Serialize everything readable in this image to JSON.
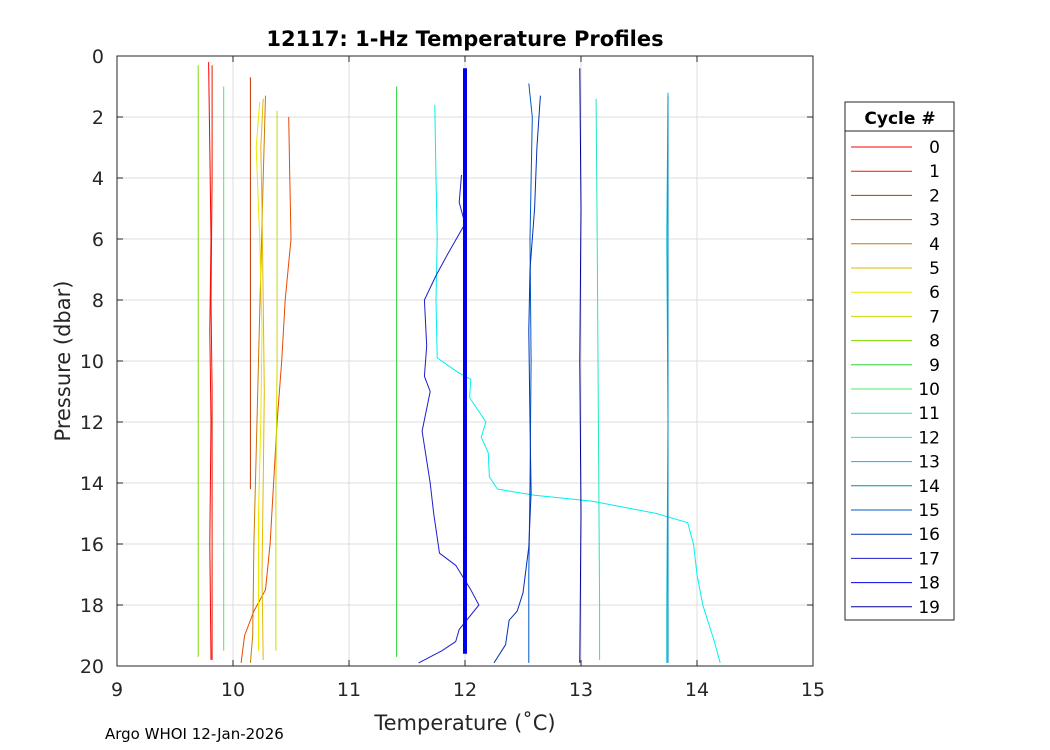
{
  "chart_data": {
    "type": "line",
    "title": "12117: 1-Hz Temperature Profiles",
    "xlabel": "Temperature (˚C)",
    "ylabel": "Pressure (dbar)",
    "xlim": [
      9,
      15
    ],
    "ylim": [
      0,
      20
    ],
    "y_reversed": true,
    "xticks": [
      9,
      10,
      11,
      12,
      13,
      14,
      15
    ],
    "yticks": [
      0,
      2,
      4,
      6,
      8,
      10,
      12,
      14,
      16,
      18,
      20
    ],
    "grid": true,
    "legend_title": "Cycle #",
    "legend_position": "right-outside",
    "series": [
      {
        "name": "0",
        "color": "#ff0000",
        "points": [
          [
            9.79,
            0.2
          ],
          [
            9.8,
            3
          ],
          [
            9.81,
            6
          ],
          [
            9.8,
            9
          ],
          [
            9.81,
            12
          ],
          [
            9.8,
            16
          ],
          [
            9.81,
            19.8
          ]
        ]
      },
      {
        "name": "1",
        "color": "#e51b00",
        "points": [
          [
            9.82,
            0.3
          ],
          [
            9.82,
            4
          ],
          [
            9.81,
            8
          ],
          [
            9.82,
            11
          ],
          [
            9.82,
            14
          ],
          [
            9.82,
            18
          ],
          [
            9.82,
            19.8
          ]
        ]
      },
      {
        "name": "2",
        "color": "#cc2e00",
        "points": [
          [
            10.15,
            0.7
          ],
          [
            10.15,
            5
          ],
          [
            10.15,
            10
          ],
          [
            10.15,
            14.2
          ]
        ]
      },
      {
        "name": "3",
        "color": "#e84a00",
        "points": [
          [
            10.48,
            2
          ],
          [
            10.49,
            4
          ],
          [
            10.5,
            6
          ],
          [
            10.45,
            8
          ],
          [
            10.42,
            10
          ],
          [
            10.38,
            12
          ],
          [
            10.35,
            14
          ],
          [
            10.32,
            16
          ],
          [
            10.28,
            17.5
          ],
          [
            10.18,
            18.2
          ],
          [
            10.1,
            19
          ],
          [
            10.07,
            19.9
          ]
        ]
      },
      {
        "name": "4",
        "color": "#cc7a00",
        "points": [
          [
            10.28,
            1.3
          ],
          [
            10.26,
            4
          ],
          [
            10.24,
            7
          ],
          [
            10.22,
            10
          ],
          [
            10.2,
            13
          ],
          [
            10.18,
            16
          ],
          [
            10.17,
            19
          ],
          [
            10.15,
            19.9
          ]
        ]
      },
      {
        "name": "5",
        "color": "#e6b800",
        "points": [
          [
            10.26,
            1.4
          ],
          [
            10.24,
            3
          ],
          [
            10.25,
            5
          ],
          [
            10.26,
            8
          ],
          [
            10.27,
            11
          ],
          [
            10.26,
            14
          ],
          [
            10.25,
            17
          ],
          [
            10.26,
            19.8
          ]
        ]
      },
      {
        "name": "6",
        "color": "#eaea00",
        "points": [
          [
            10.23,
            1.5
          ],
          [
            10.2,
            3
          ],
          [
            10.23,
            6
          ],
          [
            10.25,
            9
          ],
          [
            10.24,
            12
          ],
          [
            10.22,
            15
          ],
          [
            10.22,
            18
          ],
          [
            10.22,
            19.5
          ]
        ]
      },
      {
        "name": "7",
        "color": "#c8dc00",
        "points": [
          [
            10.38,
            1.8
          ],
          [
            10.38,
            6
          ],
          [
            10.38,
            10
          ],
          [
            10.37,
            14
          ],
          [
            10.37,
            19.5
          ]
        ]
      },
      {
        "name": "8",
        "color": "#7dd900",
        "points": [
          [
            9.7,
            0.3
          ],
          [
            9.7,
            5
          ],
          [
            9.7,
            10
          ],
          [
            9.7,
            15
          ],
          [
            9.7,
            19.7
          ]
        ]
      },
      {
        "name": "9",
        "color": "#30d23a",
        "points": [
          [
            11.41,
            1.0
          ],
          [
            11.41,
            6
          ],
          [
            11.41,
            12
          ],
          [
            11.41,
            17
          ],
          [
            11.41,
            19.7
          ]
        ]
      },
      {
        "name": "10",
        "color": "#4ee86d",
        "points": [
          [
            9.92,
            1.0
          ],
          [
            9.92,
            6
          ],
          [
            9.92,
            12
          ],
          [
            9.92,
            19.5
          ]
        ]
      },
      {
        "name": "11",
        "color": "#20e8c0",
        "points": [
          [
            13.13,
            1.4
          ],
          [
            13.14,
            6
          ],
          [
            13.15,
            12
          ],
          [
            13.16,
            18
          ],
          [
            13.16,
            19.8
          ]
        ]
      },
      {
        "name": "12",
        "color": "#00f0f0",
        "points": [
          [
            11.74,
            1.6
          ],
          [
            11.75,
            4
          ],
          [
            11.76,
            6
          ],
          [
            11.75,
            8
          ],
          [
            11.76,
            9.9
          ],
          [
            11.95,
            10.4
          ],
          [
            12.05,
            10.6
          ],
          [
            12.04,
            11.2
          ],
          [
            12.18,
            12.0
          ],
          [
            12.14,
            12.5
          ],
          [
            12.2,
            13
          ],
          [
            12.21,
            13.8
          ],
          [
            12.28,
            14.2
          ],
          [
            12.6,
            14.4
          ],
          [
            13.1,
            14.6
          ],
          [
            13.65,
            15.0
          ],
          [
            13.92,
            15.3
          ],
          [
            13.97,
            16
          ],
          [
            14.0,
            17
          ],
          [
            14.05,
            18
          ],
          [
            14.15,
            19.2
          ],
          [
            14.2,
            19.9
          ]
        ]
      },
      {
        "name": "13",
        "color": "#00bcd8",
        "points": [
          [
            13.75,
            1.2
          ],
          [
            13.74,
            6
          ],
          [
            13.75,
            12
          ],
          [
            13.74,
            18
          ],
          [
            13.74,
            19.9
          ]
        ]
      },
      {
        "name": "14",
        "color": "#008cbe",
        "points": [
          [
            13.75,
            1.3
          ],
          [
            13.75,
            10
          ],
          [
            13.75,
            19.9
          ]
        ]
      },
      {
        "name": "15",
        "color": "#0058c8",
        "points": [
          [
            12.55,
            0.9
          ],
          [
            12.58,
            2
          ],
          [
            12.56,
            6
          ],
          [
            12.57,
            10
          ],
          [
            12.56,
            14
          ],
          [
            12.55,
            17
          ],
          [
            12.55,
            19.9
          ]
        ]
      },
      {
        "name": "16",
        "color": "#0032b4",
        "points": [
          [
            12.65,
            1.3
          ],
          [
            12.62,
            3
          ],
          [
            12.6,
            5
          ],
          [
            12.56,
            7
          ],
          [
            12.55,
            9
          ],
          [
            12.56,
            12
          ],
          [
            12.57,
            14.3
          ],
          [
            12.55,
            16.1
          ],
          [
            12.5,
            17.6
          ],
          [
            12.45,
            18.2
          ],
          [
            12.38,
            18.5
          ],
          [
            12.35,
            19.3
          ],
          [
            12.25,
            19.9
          ]
        ]
      },
      {
        "name": "17",
        "color": "#1e1ecc",
        "points": [
          [
            11.97,
            3.9
          ],
          [
            11.95,
            4.8
          ],
          [
            12.0,
            5.5
          ],
          [
            11.85,
            6.5
          ],
          [
            11.75,
            7.2
          ],
          [
            11.65,
            8.0
          ],
          [
            11.67,
            9.5
          ],
          [
            11.65,
            10.5
          ],
          [
            11.7,
            11.0
          ],
          [
            11.63,
            12.3
          ],
          [
            11.7,
            14.0
          ],
          [
            11.73,
            15.0
          ],
          [
            11.78,
            16.3
          ],
          [
            11.92,
            16.7
          ],
          [
            12.05,
            17.5
          ],
          [
            12.12,
            18.0
          ],
          [
            11.95,
            18.8
          ],
          [
            11.92,
            19.2
          ],
          [
            11.8,
            19.5
          ],
          [
            11.6,
            19.9
          ]
        ]
      },
      {
        "name": "18",
        "color": "#0000ee",
        "points": [
          [
            12.0,
            0.4
          ],
          [
            12.0,
            5
          ],
          [
            12.0,
            10
          ],
          [
            12.0,
            15
          ],
          [
            12.0,
            19.6
          ]
        ],
        "width": 4
      },
      {
        "name": "19",
        "color": "#000099",
        "points": [
          [
            12.99,
            0.4
          ],
          [
            13.0,
            5
          ],
          [
            12.99,
            10
          ],
          [
            13.0,
            15
          ],
          [
            12.99,
            19.9
          ]
        ]
      }
    ]
  },
  "footer": {
    "text": "Argo WHOI 12-Jan-2026"
  }
}
